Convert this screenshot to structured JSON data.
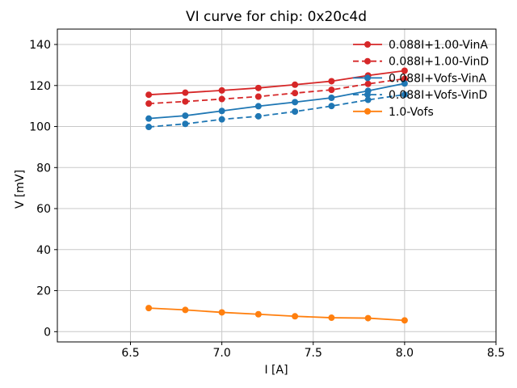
{
  "figure": {
    "background": "#ffffff",
    "title": "VI curve for chip: 0x20c4d"
  },
  "chart_data": {
    "type": "line",
    "title": "VI curve for chip: 0x20c4d",
    "xlabel": "I [A]",
    "ylabel": "V [mV]",
    "xlim": [
      6.1,
      8.5
    ],
    "ylim": [
      -5,
      147.5
    ],
    "xticks": [
      6.5,
      7.0,
      7.5,
      8.0,
      8.5
    ],
    "xtick_labels": [
      "6.5",
      "7.0",
      "7.5",
      "8.0",
      "8.5"
    ],
    "yticks": [
      0,
      20,
      40,
      60,
      80,
      100,
      120,
      140
    ],
    "ytick_labels": [
      "0",
      "20",
      "40",
      "60",
      "80",
      "100",
      "120",
      "140"
    ],
    "grid": true,
    "grid_color": "#c8c8c8",
    "spine_color": "#000000",
    "legend_position": "upper right",
    "legend_frame": false,
    "x": [
      6.6,
      6.8,
      7.0,
      7.2,
      7.4,
      7.6,
      7.8,
      8.0
    ],
    "series": [
      {
        "name": "0.088I+1.00-VinA",
        "color": "#d62728",
        "style": "solid",
        "marker": "circle",
        "values": [
          115.5,
          116.5,
          117.6,
          118.8,
          120.4,
          122.1,
          124.9,
          127.2
        ]
      },
      {
        "name": "0.088I+1.00-VinD",
        "color": "#d62728",
        "style": "dashed",
        "marker": "circle",
        "values": [
          111.2,
          112.2,
          113.4,
          114.6,
          116.3,
          117.9,
          120.8,
          123.3
        ]
      },
      {
        "name": "0.088I+Vofs-VinA",
        "color": "#1f77b4",
        "style": "solid",
        "marker": "circle",
        "values": [
          103.9,
          105.3,
          107.6,
          109.9,
          111.9,
          114.0,
          117.4,
          121.0
        ]
      },
      {
        "name": "0.088I+Vofs-VinD",
        "color": "#1f77b4",
        "style": "dashed",
        "marker": "circle",
        "values": [
          99.8,
          101.3,
          103.5,
          105.0,
          107.3,
          110.0,
          113.0,
          115.6
        ]
      },
      {
        "name": "1.0-Vofs",
        "color": "#ff7f0e",
        "style": "solid",
        "marker": "circle",
        "values": [
          11.5,
          10.6,
          9.4,
          8.5,
          7.5,
          6.8,
          6.6,
          5.5
        ]
      }
    ]
  }
}
